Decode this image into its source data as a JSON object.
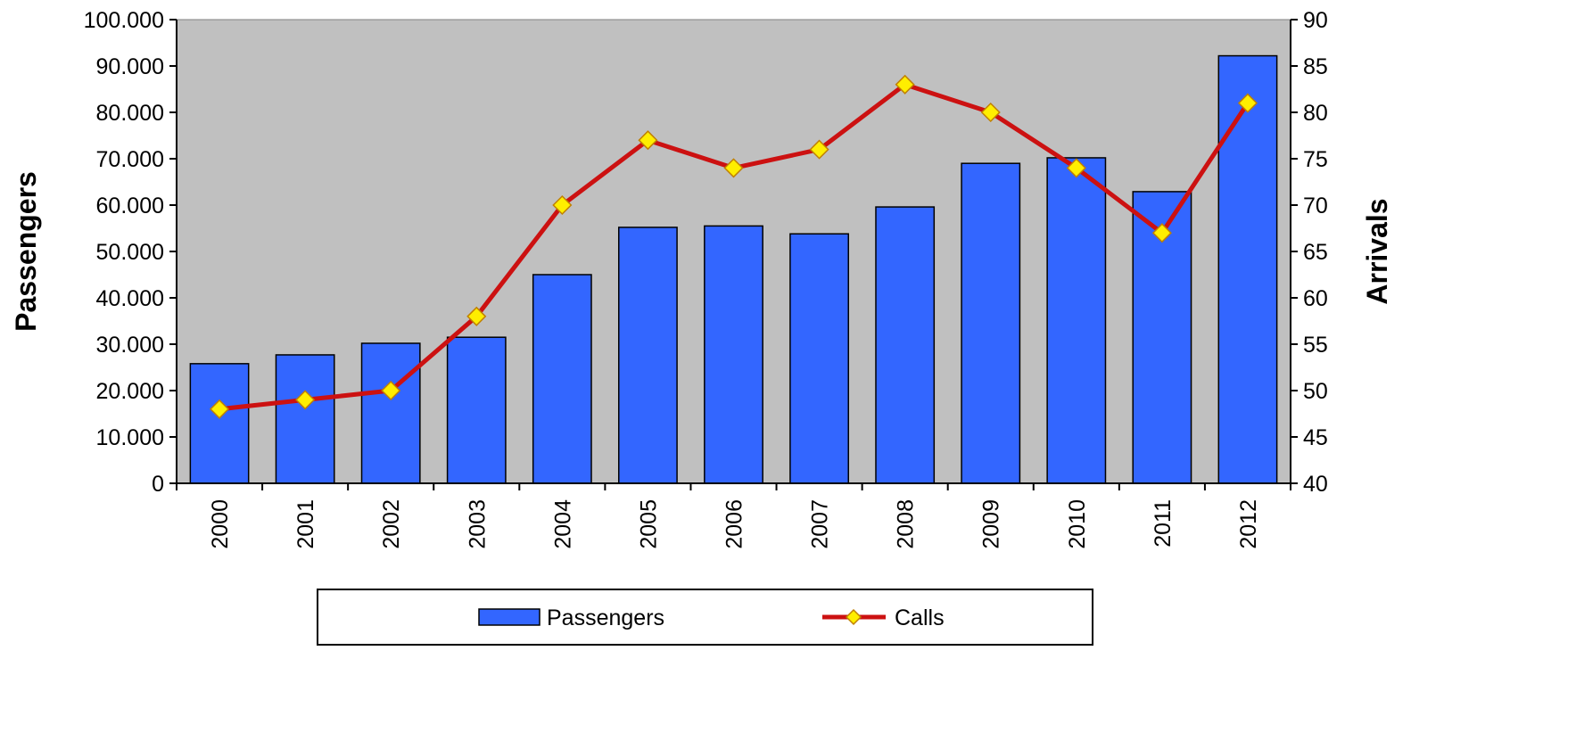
{
  "chart_data": {
    "type": "bar",
    "categories": [
      "2000",
      "2001",
      "2002",
      "2003",
      "2004",
      "2005",
      "2006",
      "2007",
      "2008",
      "2009",
      "2010",
      "2011",
      "2012"
    ],
    "series": [
      {
        "name": "Passengers",
        "kind": "bar",
        "axis": "left",
        "values": [
          25800,
          27700,
          30200,
          31500,
          45000,
          55200,
          55500,
          53800,
          59600,
          69000,
          70200,
          62900,
          92200
        ]
      },
      {
        "name": "Calls",
        "kind": "line",
        "axis": "right",
        "values": [
          48,
          49,
          50,
          58,
          70,
          77,
          74,
          76,
          83,
          80,
          74,
          67,
          81
        ]
      }
    ],
    "ylabel": "Passengers",
    "y2label": "Arrivals",
    "ylim": [
      0,
      100000
    ],
    "y2lim": [
      40,
      90
    ],
    "yticks": [
      "0",
      "10.000",
      "20.000",
      "30.000",
      "40.000",
      "50.000",
      "60.000",
      "70.000",
      "80.000",
      "90.000",
      "100.000"
    ],
    "y2ticks": [
      "40",
      "45",
      "50",
      "55",
      "60",
      "65",
      "70",
      "75",
      "80",
      "85",
      "90"
    ],
    "legend": {
      "position": "bottom",
      "items": [
        "Passengers",
        "Calls"
      ]
    },
    "grid": false,
    "colors": {
      "plot_background": "#c0c0c0",
      "bar_fill": "#3366ff",
      "bar_stroke": "#000000",
      "line": "#cc1111",
      "marker_fill": "#ffee00",
      "marker_stroke": "#c08000"
    }
  }
}
